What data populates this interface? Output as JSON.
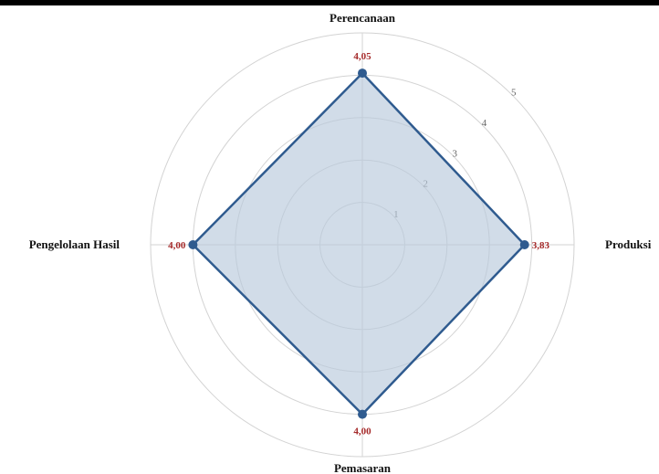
{
  "colors": {
    "series_stroke": "#2f5b8f",
    "series_fill": "#b9c9dc",
    "value_label": "#a52a2a",
    "grid": "#d3d3d3"
  },
  "chart_data": {
    "type": "radar",
    "title": "",
    "categories": [
      "Perencanaan",
      "Produksi",
      "Pemasaran",
      "Pengelolaan Hasil"
    ],
    "series": [
      {
        "values": [
          4.05,
          3.83,
          4.0,
          4.0
        ],
        "value_labels": [
          "4,05",
          "3,83",
          "4,00",
          "4,00"
        ]
      }
    ],
    "radial_ticks": [
      "1",
      "2",
      "3",
      "4",
      "5"
    ],
    "rlim": [
      0,
      5
    ],
    "grid": true,
    "legend": "none"
  }
}
